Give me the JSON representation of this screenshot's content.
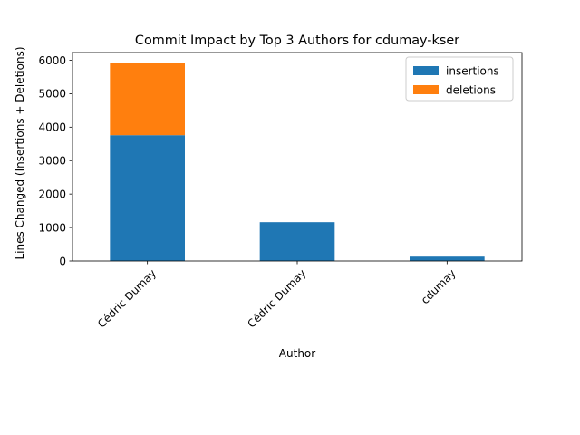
{
  "chart_data": {
    "type": "bar",
    "stacked": true,
    "title": "Commit Impact by Top 3 Authors for cdumay-kser",
    "xlabel": "Author",
    "ylabel": "Lines Changed (Insertions + Deletions)",
    "categories": [
      "Cédric Dumay",
      "Cédric Dumay",
      "cdumay"
    ],
    "series": [
      {
        "name": "insertions",
        "color": "#1f77b4",
        "values": [
          3760,
          1160,
          130
        ]
      },
      {
        "name": "deletions",
        "color": "#ff7f0e",
        "values": [
          2170,
          0,
          0
        ]
      }
    ],
    "ylim": [
      0,
      6230
    ],
    "yticks": [
      0,
      1000,
      2000,
      3000,
      4000,
      5000,
      6000
    ],
    "grid": false,
    "legend_position": "top-right"
  }
}
